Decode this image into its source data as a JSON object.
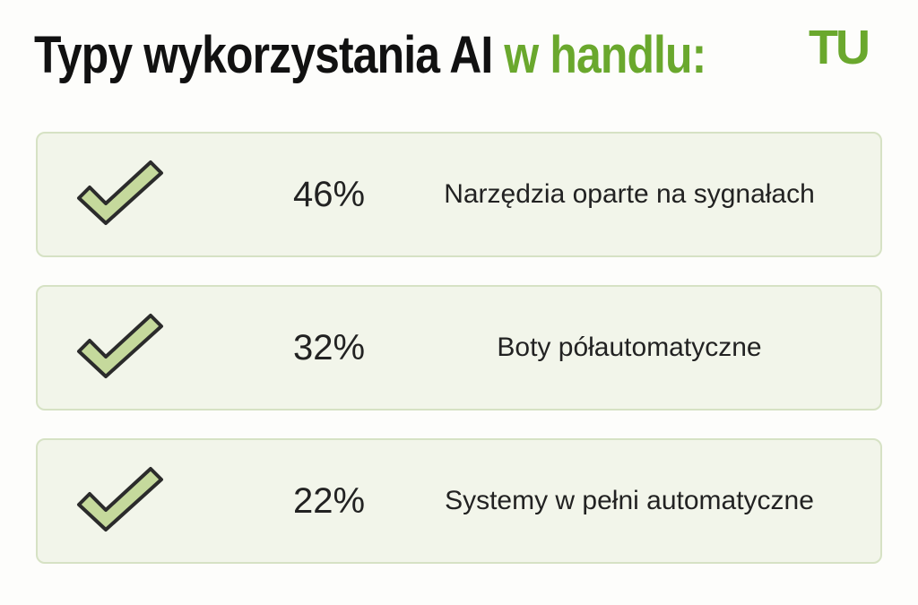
{
  "header": {
    "title_main": "Typy wykorzystania AI",
    "title_accent": "w handlu:",
    "logo": "TU"
  },
  "items": [
    {
      "percent": "46%",
      "label": "Narzędzia oparte na sygnałach"
    },
    {
      "percent": "32%",
      "label": "Boty półautomatyczne"
    },
    {
      "percent": "22%",
      "label": "Systemy w pełni automatyczne"
    }
  ]
}
